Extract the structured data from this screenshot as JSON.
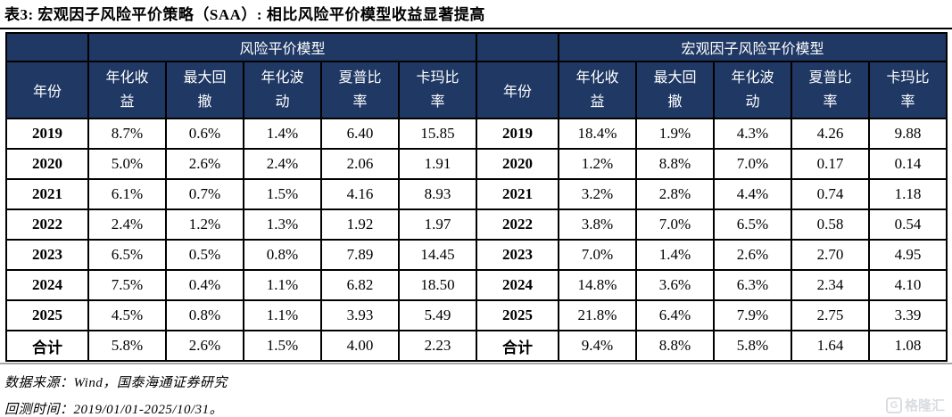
{
  "title": "表3: 宏观因子风险平价策略（SAA）: 相比风险平价模型收益显著提高",
  "colors": {
    "header_bg": "#1F3864",
    "header_text": "#FFFFFF",
    "border": "#000000",
    "bottom_rule": "#A6A6A6",
    "watermark": "#D9DCE0"
  },
  "table": {
    "group_headers": {
      "left": "风险平价模型",
      "right": "宏观因子风险平价模型"
    },
    "col_headers": [
      "年份",
      "年化收益",
      "最大回撤",
      "年化波动",
      "夏普比率",
      "卡玛比率"
    ],
    "rows": [
      {
        "year": "2019",
        "risk_parity": [
          "8.7%",
          "0.6%",
          "1.4%",
          "6.40",
          "15.85"
        ],
        "macro_factor": [
          "18.4%",
          "1.9%",
          "4.3%",
          "4.26",
          "9.88"
        ]
      },
      {
        "year": "2020",
        "risk_parity": [
          "5.0%",
          "2.6%",
          "2.4%",
          "2.06",
          "1.91"
        ],
        "macro_factor": [
          "1.2%",
          "8.8%",
          "7.0%",
          "0.17",
          "0.14"
        ]
      },
      {
        "year": "2021",
        "risk_parity": [
          "6.1%",
          "0.7%",
          "1.5%",
          "4.16",
          "8.93"
        ],
        "macro_factor": [
          "3.2%",
          "2.8%",
          "4.4%",
          "0.74",
          "1.18"
        ]
      },
      {
        "year": "2022",
        "risk_parity": [
          "2.4%",
          "1.2%",
          "1.3%",
          "1.92",
          "1.97"
        ],
        "macro_factor": [
          "3.8%",
          "7.0%",
          "6.5%",
          "0.58",
          "0.54"
        ]
      },
      {
        "year": "2023",
        "risk_parity": [
          "6.5%",
          "0.5%",
          "0.8%",
          "7.89",
          "14.45"
        ],
        "macro_factor": [
          "7.0%",
          "1.4%",
          "2.6%",
          "2.70",
          "4.95"
        ]
      },
      {
        "year": "2024",
        "risk_parity": [
          "7.5%",
          "0.4%",
          "1.1%",
          "6.82",
          "18.50"
        ],
        "macro_factor": [
          "14.8%",
          "3.6%",
          "6.3%",
          "2.34",
          "4.10"
        ]
      },
      {
        "year": "2025",
        "risk_parity": [
          "4.5%",
          "0.8%",
          "1.1%",
          "3.93",
          "5.49"
        ],
        "macro_factor": [
          "21.8%",
          "6.4%",
          "7.9%",
          "2.75",
          "3.39"
        ]
      },
      {
        "year": "合计",
        "risk_parity": [
          "5.8%",
          "2.6%",
          "1.5%",
          "4.00",
          "2.23"
        ],
        "macro_factor": [
          "9.4%",
          "8.8%",
          "5.8%",
          "1.64",
          "1.08"
        ]
      }
    ]
  },
  "footnotes": {
    "source": "数据来源：Wind，国泰海通证券研究",
    "backtest": "回测时间：2019/01/01-2025/10/31。"
  },
  "watermark": {
    "icon_letter": "G",
    "text": "格隆汇"
  }
}
